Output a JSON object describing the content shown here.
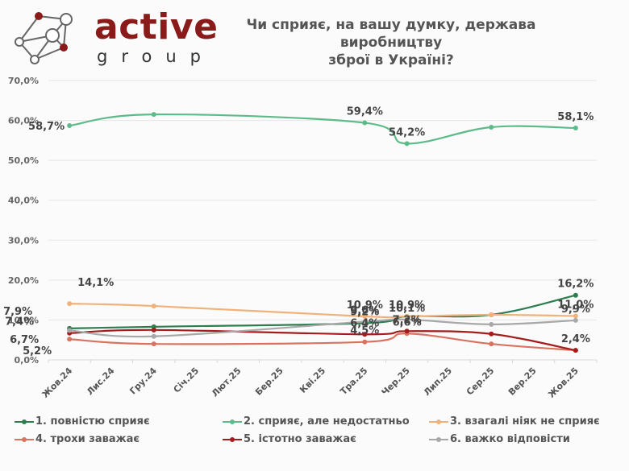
{
  "logo": {
    "word": "active",
    "sub": "group"
  },
  "chart_data": {
    "type": "line",
    "title": "Чи сприяє, на вашу думку, держава виробництву зброї в Україні?",
    "xlabel": "",
    "ylabel": "",
    "ylim": [
      0,
      70
    ],
    "yticks": [
      "0,0%",
      "10,0%",
      "20,0%",
      "30,0%",
      "40,0%",
      "50,0%",
      "60,0%",
      "70,0%"
    ],
    "ytick_values": [
      0,
      10,
      20,
      30,
      40,
      50,
      60,
      70
    ],
    "grid": true,
    "legend_position": "bottom",
    "categories": [
      "Жов.24",
      "Лис.24",
      "Гру.24",
      "Січ.25",
      "Лют.25",
      "Бер.25",
      "Кві.25",
      "Тра.25",
      "Чер.25",
      "Лип.25",
      "Сер.25",
      "Вер.25",
      "Жов.25"
    ],
    "series": [
      {
        "name": "1. повністю сприяє",
        "color": "#2e7d4f",
        "points": [
          [
            0,
            7.9
          ],
          [
            2,
            8.3
          ],
          [
            7,
            9.2
          ],
          [
            8,
            10.9
          ],
          [
            10,
            11.3
          ],
          [
            12,
            16.2
          ]
        ],
        "labels": {
          "0": "7,9%",
          "7": "9,2%",
          "12": "16,2%"
        }
      },
      {
        "name": "2. сприяє, але недостатньо",
        "color": "#5dbb8a",
        "points": [
          [
            0,
            58.7
          ],
          [
            2,
            61.5
          ],
          [
            7,
            59.4
          ],
          [
            8,
            54.2
          ],
          [
            10,
            58.3
          ],
          [
            12,
            58.1
          ]
        ],
        "labels": {
          "0": "58,7%",
          "7": "59,4%",
          "8": "54,2%",
          "12": "58,1%"
        }
      },
      {
        "name": "3. взагалі ніяк не сприяє",
        "color": "#f0b27a",
        "points": [
          [
            0,
            14.1
          ],
          [
            2,
            13.5
          ],
          [
            7,
            10.9
          ],
          [
            8,
            10.9
          ],
          [
            10,
            11.3
          ],
          [
            12,
            11.0
          ]
        ],
        "labels": {
          "0": "14,1%",
          "7": "10,9%",
          "8": "10,9%",
          "12": "11,0%"
        }
      },
      {
        "name": "4. трохи заважає",
        "color": "#d9735f",
        "points": [
          [
            0,
            5.2
          ],
          [
            2,
            4.0
          ],
          [
            7,
            4.5
          ],
          [
            8,
            6.6
          ],
          [
            10,
            4.0
          ],
          [
            12,
            2.4
          ]
        ],
        "labels": {
          "0": "5,2%",
          "7": "4,5%",
          "8": "6,6%"
        }
      },
      {
        "name": "5. істотно заважає",
        "color": "#a51c1c",
        "points": [
          [
            0,
            6.7
          ],
          [
            2,
            7.5
          ],
          [
            7,
            6.4
          ],
          [
            8,
            7.2
          ],
          [
            10,
            6.5
          ],
          [
            12,
            2.4
          ]
        ],
        "labels": {
          "0": "6,7%",
          "7": "6,4%",
          "8": "7,2%",
          "12": "2,4%"
        }
      },
      {
        "name": "6. важко відповісти",
        "color": "#a8a8a8",
        "points": [
          [
            0,
            7.4
          ],
          [
            2,
            5.9
          ],
          [
            7,
            9.6
          ],
          [
            8,
            10.1
          ],
          [
            10,
            8.9
          ],
          [
            12,
            9.9
          ]
        ],
        "labels": {
          "0": "7,4%",
          "7": "9,6%",
          "8": "10,1%",
          "12": "9,9%"
        }
      }
    ]
  }
}
